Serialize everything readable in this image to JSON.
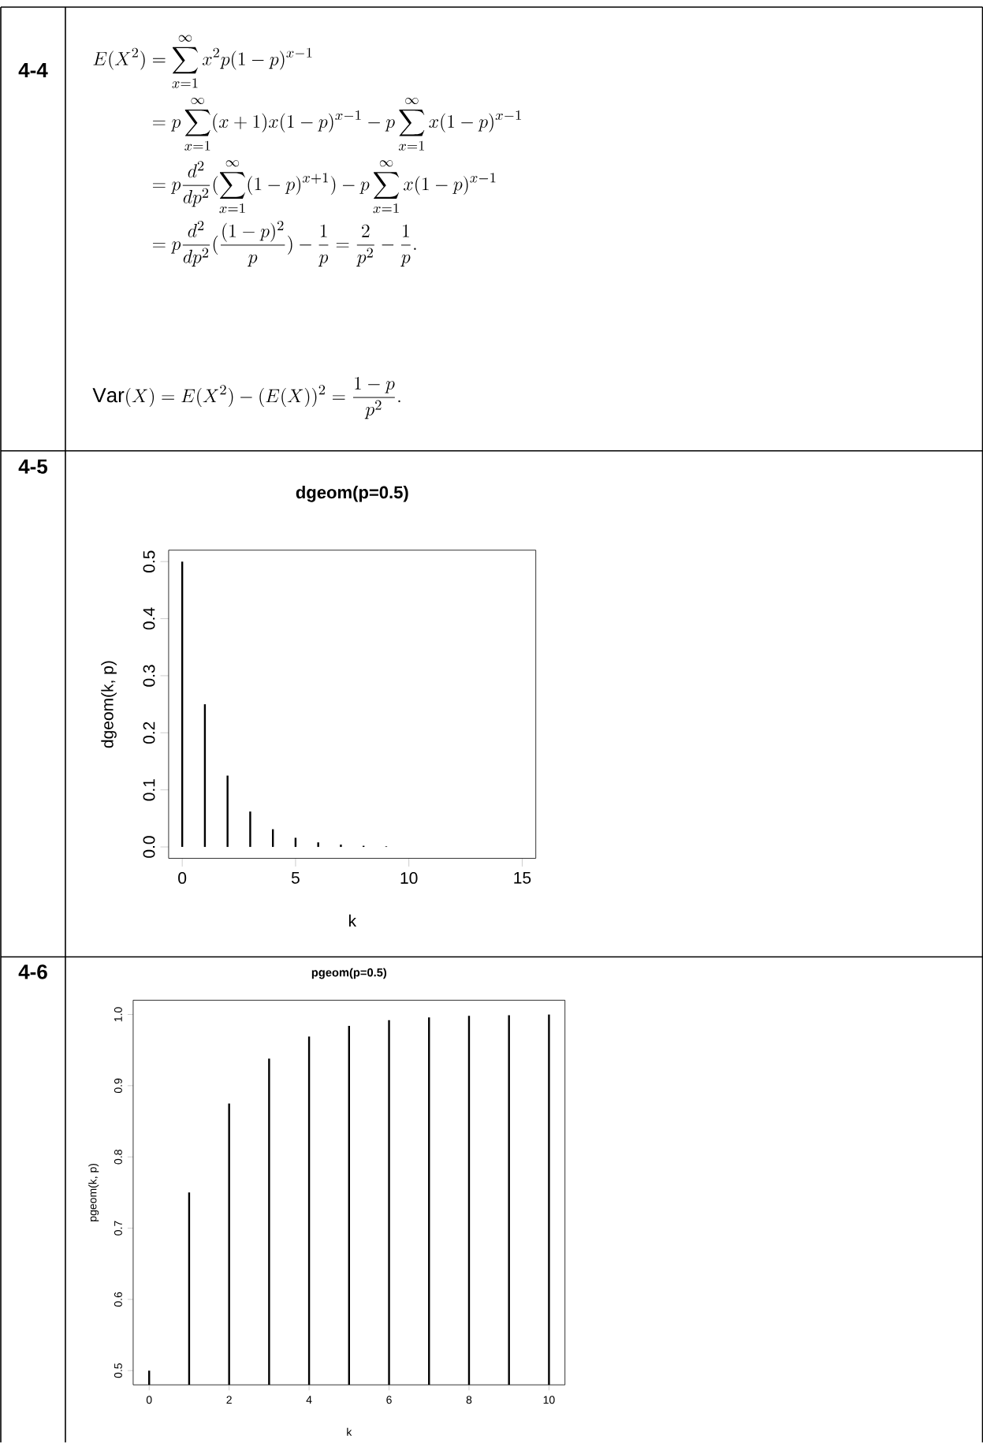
{
  "chart_data": [
    {
      "type": "other",
      "annotations": [
        "4-4",
        "\\begin{aligned}E(X^2) &= \\sum_{x=1}^{\\infty} x^2 p(1-p)^{x-1} \\\\ &= p\\sum_{x=1}^{\\infty}(x+1)x(1-p)^{x-1} - p\\sum_{x=1}^{\\infty} x(1-p)^{x-1} \\\\ &= p\\frac{d^2}{dp^2}(\\sum_{x=1}^{\\infty}(1-p)^{x+1}) - p\\sum_{x=1}^{\\infty} x(1-p)^{x-1} \\\\ &= p\\frac{d^2}{dp^2}(\\frac{(1-p)^2}{p}) - \\frac{1}{p} = \\frac{2}{p^2} - \\frac{1}{p}.\\end{aligned}",
        "\\mathrm{Var}(X) = E(X^2) - (E(X))^2 = \\frac{1-p}{p^2}."
      ]
    },
    {
      "type": "bar",
      "title": "dgeom(p=0.5)",
      "xlabel": "k",
      "ylabel": "dgeom(k, p)",
      "annotations": [
        "4-5"
      ],
      "color": "#000000",
      "x": [
        0,
        1,
        2,
        3,
        4,
        5,
        6,
        7,
        8,
        9,
        10,
        11,
        12,
        13,
        14,
        15
      ],
      "values": [
        0.5,
        0.25,
        0.125,
        0.062,
        0.031,
        0.016,
        0.008,
        0.004,
        0.002,
        0.001,
        0,
        0,
        0,
        0,
        0,
        0
      ],
      "xlim": [
        -0.6,
        15.6
      ],
      "ylim": [
        -0.02,
        0.52
      ],
      "xticks": [
        0,
        5,
        10,
        15
      ],
      "yticks": [
        {
          "value": 0,
          "label": "0.0"
        },
        {
          "value": 0.1,
          "label": "0.1"
        },
        {
          "value": 0.2,
          "label": "0.2"
        },
        {
          "value": 0.3,
          "label": "0.3"
        },
        {
          "value": 0.4,
          "label": "0.4"
        },
        {
          "value": 0.5,
          "label": "0.5"
        }
      ]
    },
    {
      "type": "bar",
      "title": "pgeom(p=0.5)",
      "xlabel": "k",
      "ylabel": "pgeom(k, p)",
      "annotations": [
        "4-6"
      ],
      "color": "#000000",
      "x": [
        0,
        1,
        2,
        3,
        4,
        5,
        6,
        7,
        8,
        9,
        10
      ],
      "values": [
        0.5,
        0.75,
        0.875,
        0.938,
        0.969,
        0.984,
        0.992,
        0.996,
        0.998,
        0.999,
        1.0
      ],
      "xlim": [
        -0.4,
        10.4
      ],
      "ylim": [
        0.48,
        1.02
      ],
      "xticks": [
        0,
        2,
        4,
        6,
        8,
        10
      ],
      "yticks": [
        {
          "value": 0.5,
          "label": "0.5"
        },
        {
          "value": 0.6,
          "label": "0.6"
        },
        {
          "value": 0.7,
          "label": "0.7"
        },
        {
          "value": 0.8,
          "label": "0.8"
        },
        {
          "value": 0.9,
          "label": "0.9"
        },
        {
          "value": 1.0,
          "label": "1.0"
        }
      ]
    }
  ]
}
